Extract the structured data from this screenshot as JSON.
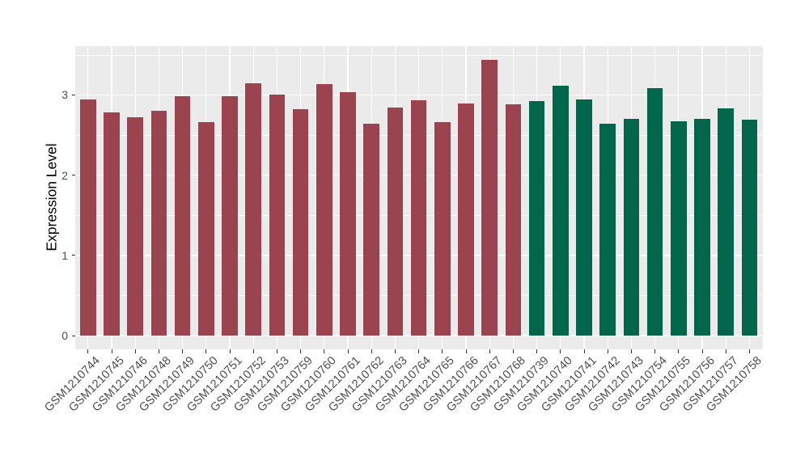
{
  "figure": {
    "background": "#FFFFFF",
    "panel_background": "#EBEBEB",
    "grid_color": "#FFFFFF",
    "axis_text_color": "#4D4D4D",
    "axis_title_color": "#000000",
    "tick_color": "#333333"
  },
  "chart_data": {
    "type": "bar",
    "title": "",
    "xlabel": "",
    "ylabel": "Expression Level",
    "ylim": [
      -0.18,
      3.61
    ],
    "yticks": [
      0,
      1,
      2,
      3
    ],
    "grid": "major and minor horizontal white lines, vertical white line at each category center",
    "legend_position": "none",
    "categories": [
      "GSM1210744",
      "GSM1210745",
      "GSM1210746",
      "GSM1210748",
      "GSM1210749",
      "GSM1210750",
      "GSM1210751",
      "GSM1210752",
      "GSM1210753",
      "GSM1210759",
      "GSM1210760",
      "GSM1210761",
      "GSM1210762",
      "GSM1210763",
      "GSM1210764",
      "GSM1210765",
      "GSM1210766",
      "GSM1210767",
      "GSM1210768",
      "GSM1210739",
      "GSM1210740",
      "GSM1210741",
      "GSM1210742",
      "GSM1210743",
      "GSM1210754",
      "GSM1210755",
      "GSM1210756",
      "GSM1210757",
      "GSM1210758"
    ],
    "values": [
      2.94,
      2.78,
      2.72,
      2.8,
      2.98,
      2.66,
      2.98,
      3.15,
      3.0,
      2.82,
      3.14,
      3.03,
      2.64,
      2.84,
      2.93,
      2.66,
      2.89,
      3.44,
      2.88,
      2.92,
      3.11,
      2.94,
      2.64,
      2.7,
      3.08,
      2.67,
      2.7,
      2.83,
      2.69
    ],
    "groups": [
      "group1",
      "group1",
      "group1",
      "group1",
      "group1",
      "group1",
      "group1",
      "group1",
      "group1",
      "group1",
      "group1",
      "group1",
      "group1",
      "group1",
      "group1",
      "group1",
      "group1",
      "group1",
      "group1",
      "group2",
      "group2",
      "group2",
      "group2",
      "group2",
      "group2",
      "group2",
      "group2",
      "group2",
      "group2"
    ],
    "group_colors": {
      "group1": "#9B4450",
      "group2": "#01664A"
    }
  }
}
